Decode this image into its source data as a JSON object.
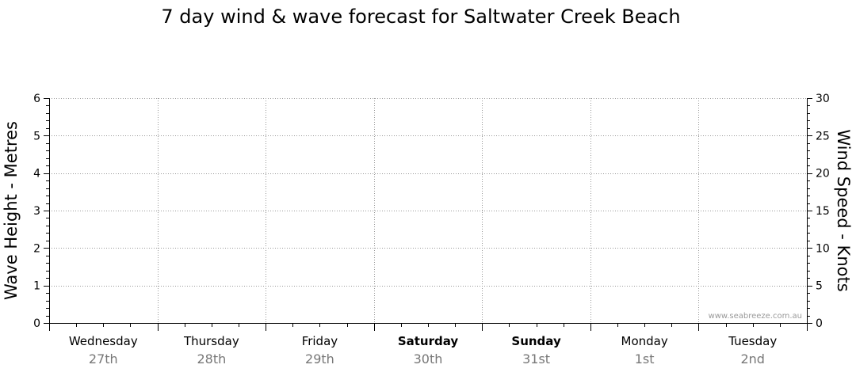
{
  "chart_data": {
    "type": "line",
    "title": "7 day wind & wave forecast for Saltwater Creek Beach",
    "ylabel": "Wave Height - Metres",
    "y2label": "Wind Speed - Knots",
    "ylim": [
      0,
      6
    ],
    "y2lim": [
      0,
      30
    ],
    "yticks": [
      0,
      1,
      2,
      3,
      4,
      5,
      6
    ],
    "y2ticks": [
      0,
      5,
      10,
      15,
      20,
      25,
      30
    ],
    "grid": true,
    "categories": [
      {
        "day": "Wednesday",
        "date": "27th",
        "bold": false
      },
      {
        "day": "Thursday",
        "date": "28th",
        "bold": false
      },
      {
        "day": "Friday",
        "date": "29th",
        "bold": false
      },
      {
        "day": "Saturday",
        "date": "30th",
        "bold": true
      },
      {
        "day": "Sunday",
        "date": "31st",
        "bold": true
      },
      {
        "day": "Monday",
        "date": "1st",
        "bold": false
      },
      {
        "day": "Tuesday",
        "date": "2nd",
        "bold": false
      }
    ],
    "series": [],
    "watermark": "www.seabreeze.com.au"
  }
}
